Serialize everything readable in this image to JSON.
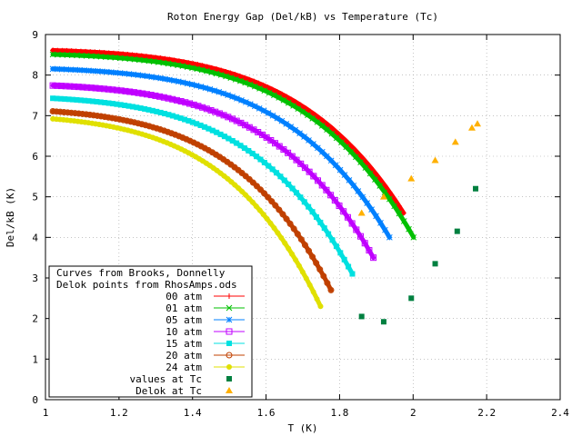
{
  "chart_data": {
    "type": "scatter",
    "title": "Roton Energy Gap (Del/kB) vs Temperature (Tc)",
    "xlabel": "T (K)",
    "ylabel": "Del/kB (K)",
    "xlim": [
      1,
      2.4
    ],
    "ylim": [
      0,
      9
    ],
    "xticks": [
      "1",
      "1.2",
      "1.4",
      "1.6",
      "1.8",
      "2",
      "2.2",
      "2.4"
    ],
    "yticks": [
      "0",
      "1",
      "2",
      "3",
      "4",
      "5",
      "6",
      "7",
      "8",
      "9"
    ],
    "grid": true,
    "legend_position": "bottom-left",
    "legend_header": [
      "Curves from Brooks, Donnelly",
      "Delok points from RhosAmps.ods"
    ],
    "series": [
      {
        "name": "00 atm",
        "color": "#ff0000",
        "marker": "plus",
        "delta0": 8.65,
        "tc": 2.2,
        "y_end": 4.6
      },
      {
        "name": "01 atm",
        "color": "#00c000",
        "marker": "cross",
        "delta0": 8.55,
        "tc": 2.19,
        "y_end": 4.0
      },
      {
        "name": "05 atm",
        "color": "#0080ff",
        "marker": "star",
        "delta0": 8.2,
        "tc": 2.13,
        "y_end": 4.0
      },
      {
        "name": "10 atm",
        "color": "#c000ff",
        "marker": "square-open",
        "delta0": 7.8,
        "tc": 2.06,
        "y_end": 3.5
      },
      {
        "name": "15 atm",
        "color": "#00e0e0",
        "marker": "square-filled",
        "delta0": 7.5,
        "tc": 1.98,
        "y_end": 3.1
      },
      {
        "name": "20 atm",
        "color": "#c04000",
        "marker": "circle-open",
        "delta0": 7.2,
        "tc": 1.9,
        "y_end": 2.7
      },
      {
        "name": "24 atm",
        "color": "#e0e000",
        "marker": "circle-filled",
        "delta0": 7.03,
        "tc": 1.85,
        "y_end": 2.3
      }
    ],
    "values_at_tc": {
      "name": "values at Tc",
      "color": "#008040",
      "marker": "square-filled",
      "points": [
        [
          2.17,
          5.2
        ],
        [
          2.12,
          4.15
        ],
        [
          2.06,
          3.35
        ],
        [
          1.995,
          2.5
        ],
        [
          1.92,
          1.92
        ],
        [
          1.86,
          2.05
        ]
      ]
    },
    "delok_at_tc": {
      "name": "Delok at Tc",
      "color": "#ffb000",
      "marker": "triangle",
      "points": [
        [
          2.175,
          6.8
        ],
        [
          2.16,
          6.7
        ],
        [
          2.115,
          6.35
        ],
        [
          2.06,
          5.9
        ],
        [
          1.995,
          5.45
        ],
        [
          1.92,
          5.0
        ],
        [
          1.86,
          4.6
        ]
      ]
    }
  }
}
